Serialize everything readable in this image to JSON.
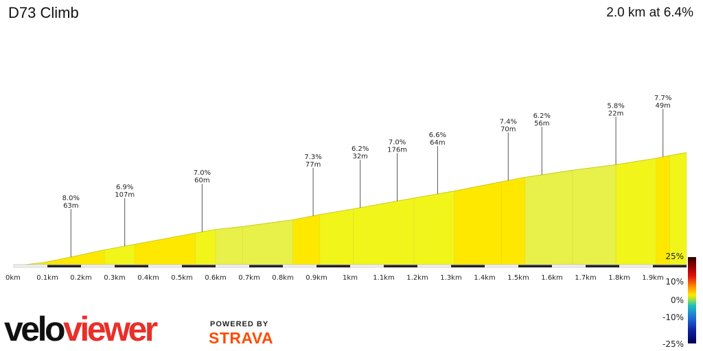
{
  "header": {
    "title": "D73 Climb",
    "summary": "2.0 km at 6.4%"
  },
  "branding": {
    "logo_part1": "velo",
    "logo_part2": "viewer",
    "powered_by": "POWERED BY",
    "strava": "STRAVA"
  },
  "colors": {
    "steep": "#ffe800",
    "moderate": "#f2f51a",
    "gentle": "#e8f04a",
    "brand_red": "#e8302a",
    "strava_orange": "#fc4c02"
  },
  "chart_data": {
    "type": "area",
    "title": "",
    "xlabel": "",
    "ylabel": "",
    "x_ticks": [
      "0km",
      "0.1km",
      "0.2km",
      "0.3km",
      "0.4km",
      "0.5km",
      "0.6km",
      "0.7km",
      "0.8km",
      "0.9km",
      "1km",
      "1.1km",
      "1.2km",
      "1.3km",
      "1.4km",
      "1.5km",
      "1.6km",
      "1.7km",
      "1.8km",
      "1.9km"
    ],
    "xlim": [
      0,
      2.0
    ],
    "segments": [
      {
        "x0": 0.0,
        "x1": 0.03,
        "grade": 1.5
      },
      {
        "x0": 0.03,
        "x1": 0.09,
        "grade": 4.5
      },
      {
        "x0": 0.09,
        "x1": 0.14,
        "grade": 7.6
      },
      {
        "x0": 0.14,
        "x1": 0.27,
        "grade": 8.0
      },
      {
        "x0": 0.27,
        "x1": 0.36,
        "grade": 6.9
      },
      {
        "x0": 0.36,
        "x1": 0.54,
        "grade": 7.0
      },
      {
        "x0": 0.54,
        "x1": 0.6,
        "grade": 6.8
      },
      {
        "x0": 0.6,
        "x1": 0.68,
        "grade": 4.0
      },
      {
        "x0": 0.68,
        "x1": 0.83,
        "grade": 5.1
      },
      {
        "x0": 0.83,
        "x1": 0.91,
        "grade": 7.3
      },
      {
        "x0": 0.91,
        "x1": 1.01,
        "grade": 6.3
      },
      {
        "x0": 1.01,
        "x1": 1.19,
        "grade": 6.8
      },
      {
        "x0": 1.19,
        "x1": 1.31,
        "grade": 6.6
      },
      {
        "x0": 1.31,
        "x1": 1.45,
        "grade": 7.4
      },
      {
        "x0": 1.45,
        "x1": 1.52,
        "grade": 7.2
      },
      {
        "x0": 1.52,
        "x1": 1.66,
        "grade": 5.6
      },
      {
        "x0": 1.66,
        "x1": 1.79,
        "grade": 4.8
      },
      {
        "x0": 1.79,
        "x1": 1.91,
        "grade": 6.0
      },
      {
        "x0": 1.91,
        "x1": 1.95,
        "grade": 7.7
      },
      {
        "x0": 1.95,
        "x1": 2.0,
        "grade": 6.5
      }
    ],
    "annotations": [
      {
        "x": 0.17,
        "grade": "8.0%",
        "length": "63m"
      },
      {
        "x": 0.33,
        "grade": "6.9%",
        "length": "107m"
      },
      {
        "x": 0.56,
        "grade": "7.0%",
        "length": "60m"
      },
      {
        "x": 0.89,
        "grade": "7.3%",
        "length": "77m"
      },
      {
        "x": 1.03,
        "grade": "6.2%",
        "length": "32m"
      },
      {
        "x": 1.14,
        "grade": "7.0%",
        "length": "176m"
      },
      {
        "x": 1.26,
        "grade": "6.6%",
        "length": "64m"
      },
      {
        "x": 1.47,
        "grade": "7.4%",
        "length": "70m"
      },
      {
        "x": 1.57,
        "grade": "6.2%",
        "length": "56m"
      },
      {
        "x": 1.79,
        "grade": "5.8%",
        "length": "22m"
      },
      {
        "x": 1.93,
        "grade": "7.7%",
        "length": "49m"
      }
    ],
    "legend": {
      "placement": "right",
      "labels": [
        "25%",
        "10%",
        "0%",
        "-10%",
        "-25%"
      ],
      "range": [
        -25,
        25
      ]
    }
  }
}
